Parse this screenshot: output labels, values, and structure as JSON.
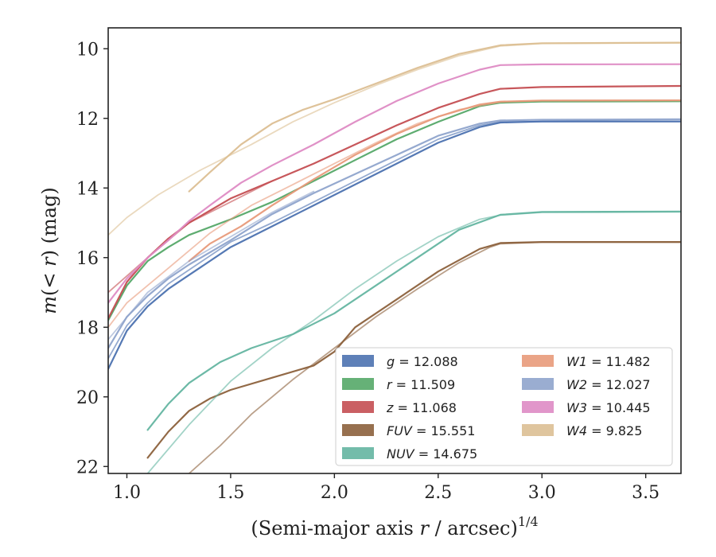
{
  "chart_data": {
    "type": "line",
    "xlabel": "(Semi-major axis r / arcsec)^{1/4}",
    "xlabel_parts": {
      "pre": "(Semi-major axis ",
      "var": "r",
      "post": " / arcsec)",
      "sup": "1/4"
    },
    "ylabel": "m(<r) (mag)",
    "ylabel_parts": {
      "pre": "m",
      "mid": "(< ",
      "var": "r",
      "post": ") (mag)"
    },
    "xlim": [
      0.91,
      3.67
    ],
    "ylim": [
      22.2,
      9.4
    ],
    "y_inverted": true,
    "xticks": [
      1.0,
      1.5,
      2.0,
      2.5,
      3.0,
      3.5
    ],
    "xtick_labels": [
      "1.0",
      "1.5",
      "2.0",
      "2.5",
      "3.0",
      "3.5"
    ],
    "yticks": [
      10,
      12,
      14,
      16,
      18,
      20,
      22
    ],
    "ytick_labels": [
      "10",
      "12",
      "14",
      "16",
      "18",
      "20",
      "22"
    ],
    "grid": false,
    "legend_position": "lower-right",
    "series": [
      {
        "name": "g = 12.088",
        "label_var": "g",
        "label_val": " = 12.088",
        "color": "#4c72b0",
        "curves": [
          [
            [
              0.91,
              19.2
            ],
            [
              1.0,
              18.1
            ],
            [
              1.1,
              17.4
            ],
            [
              1.2,
              16.9
            ],
            [
              1.3,
              16.5
            ],
            [
              1.5,
              15.7
            ],
            [
              1.7,
              15.1
            ],
            [
              1.9,
              14.5
            ],
            [
              2.1,
              13.9
            ],
            [
              2.3,
              13.3
            ],
            [
              2.5,
              12.7
            ],
            [
              2.7,
              12.25
            ],
            [
              2.8,
              12.12
            ],
            [
              3.0,
              12.09
            ],
            [
              3.67,
              12.088
            ]
          ],
          [
            [
              0.91,
              18.9
            ],
            [
              1.0,
              17.95
            ],
            [
              1.1,
              17.3
            ],
            [
              1.2,
              16.75
            ],
            [
              1.3,
              16.35
            ],
            [
              1.5,
              15.55
            ],
            [
              1.7,
              15.0
            ],
            [
              1.9,
              14.4
            ],
            [
              2.1,
              13.8
            ],
            [
              2.3,
              13.2
            ],
            [
              2.5,
              12.6
            ],
            [
              2.7,
              12.2
            ],
            [
              2.8,
              12.1
            ],
            [
              3.2,
              12.09
            ],
            [
              3.67,
              12.09
            ]
          ]
        ]
      },
      {
        "name": "r = 11.509",
        "label_var": "r",
        "label_val": " = 11.509",
        "color": "#55a868",
        "curves": [
          [
            [
              0.91,
              17.8
            ],
            [
              1.0,
              16.8
            ],
            [
              1.1,
              16.1
            ],
            [
              1.2,
              15.7
            ],
            [
              1.3,
              15.35
            ],
            [
              1.5,
              14.9
            ],
            [
              1.7,
              14.4
            ],
            [
              1.9,
              13.8
            ],
            [
              2.1,
              13.2
            ],
            [
              2.3,
              12.6
            ],
            [
              2.5,
              12.1
            ],
            [
              2.7,
              11.65
            ],
            [
              2.8,
              11.55
            ],
            [
              3.0,
              11.52
            ],
            [
              3.67,
              11.509
            ]
          ]
        ]
      },
      {
        "name": "z = 11.068",
        "label_var": "z",
        "label_val": " = 11.068",
        "color": "#c44e52",
        "curves": [
          [
            [
              0.91,
              17.75
            ],
            [
              1.0,
              16.7
            ],
            [
              1.1,
              16.0
            ],
            [
              1.2,
              15.45
            ],
            [
              1.3,
              15.0
            ],
            [
              1.5,
              14.3
            ],
            [
              1.7,
              13.8
            ],
            [
              1.9,
              13.3
            ],
            [
              2.1,
              12.75
            ],
            [
              2.3,
              12.2
            ],
            [
              2.5,
              11.7
            ],
            [
              2.7,
              11.3
            ],
            [
              2.8,
              11.15
            ],
            [
              3.0,
              11.1
            ],
            [
              3.67,
              11.068
            ]
          ],
          [
            [
              0.91,
              17.0
            ],
            [
              1.1,
              16.0
            ],
            [
              1.3,
              15.0
            ],
            [
              1.5,
              14.4
            ],
            [
              1.7,
              13.8
            ]
          ]
        ]
      },
      {
        "name": "FUV = 15.551",
        "label_var": "FUV",
        "label_val": " = 15.551",
        "color": "#8c613c",
        "curves": [
          [
            [
              1.1,
              21.75
            ],
            [
              1.2,
              21.0
            ],
            [
              1.3,
              20.4
            ],
            [
              1.4,
              20.05
            ],
            [
              1.5,
              19.8
            ],
            [
              1.7,
              19.45
            ],
            [
              1.9,
              19.1
            ],
            [
              2.0,
              18.7
            ],
            [
              2.1,
              18.0
            ],
            [
              2.3,
              17.2
            ],
            [
              2.5,
              16.4
            ],
            [
              2.7,
              15.75
            ],
            [
              2.8,
              15.58
            ],
            [
              3.0,
              15.552
            ],
            [
              3.67,
              15.551
            ]
          ],
          [
            [
              1.3,
              22.2
            ],
            [
              1.45,
              21.4
            ],
            [
              1.6,
              20.5
            ],
            [
              1.8,
              19.5
            ],
            [
              2.0,
              18.6
            ],
            [
              2.2,
              17.7
            ],
            [
              2.4,
              16.9
            ],
            [
              2.6,
              16.15
            ],
            [
              2.75,
              15.7
            ],
            [
              2.8,
              15.6
            ],
            [
              3.0,
              15.56
            ],
            [
              3.67,
              15.555
            ]
          ]
        ]
      },
      {
        "name": "NUV = 14.675",
        "label_var": "NUV",
        "label_val": " = 14.675",
        "color": "#64b5a1",
        "curves": [
          [
            [
              1.1,
              20.95
            ],
            [
              1.2,
              20.2
            ],
            [
              1.3,
              19.6
            ],
            [
              1.45,
              19.0
            ],
            [
              1.6,
              18.6
            ],
            [
              1.8,
              18.2
            ],
            [
              2.0,
              17.6
            ],
            [
              2.2,
              16.8
            ],
            [
              2.4,
              16.0
            ],
            [
              2.6,
              15.2
            ],
            [
              2.8,
              14.77
            ],
            [
              3.0,
              14.69
            ],
            [
              3.67,
              14.675
            ]
          ],
          [
            [
              1.1,
              22.2
            ],
            [
              1.3,
              20.8
            ],
            [
              1.5,
              19.55
            ],
            [
              1.7,
              18.6
            ],
            [
              1.9,
              17.8
            ],
            [
              2.1,
              16.9
            ],
            [
              2.3,
              16.1
            ],
            [
              2.5,
              15.4
            ],
            [
              2.7,
              14.9
            ],
            [
              2.8,
              14.78
            ],
            [
              3.0,
              14.7
            ],
            [
              3.67,
              14.69
            ]
          ]
        ]
      },
      {
        "name": "W1 = 11.482",
        "label_var": "W1",
        "label_val": " = 11.482",
        "color": "#e89a7a",
        "curves": [
          [
            [
              1.3,
              16.1
            ],
            [
              1.4,
              15.6
            ],
            [
              1.55,
              15.1
            ],
            [
              1.7,
              14.5
            ],
            [
              1.9,
              13.75
            ],
            [
              2.1,
              13.05
            ],
            [
              2.3,
              12.45
            ],
            [
              2.5,
              11.95
            ],
            [
              2.7,
              11.6
            ],
            [
              2.8,
              11.52
            ],
            [
              3.0,
              11.49
            ],
            [
              3.67,
              11.482
            ]
          ],
          [
            [
              0.91,
              18.0
            ],
            [
              1.0,
              17.3
            ],
            [
              1.2,
              16.3
            ],
            [
              1.4,
              15.3
            ],
            [
              1.6,
              14.5
            ],
            [
              1.8,
              13.9
            ],
            [
              2.0,
              13.3
            ],
            [
              2.2,
              12.7
            ],
            [
              2.4,
              12.15
            ],
            [
              2.6,
              11.75
            ],
            [
              2.8,
              11.53
            ],
            [
              3.0,
              11.49
            ],
            [
              3.67,
              11.48
            ]
          ]
        ]
      },
      {
        "name": "W2 = 12.027",
        "label_var": "W2",
        "label_val": " = 12.027",
        "color": "#8fa4cc",
        "curves": [
          [
            [
              0.91,
              18.6
            ],
            [
              1.0,
              17.7
            ],
            [
              1.1,
              17.1
            ],
            [
              1.2,
              16.6
            ],
            [
              1.3,
              16.2
            ],
            [
              1.5,
              15.5
            ],
            [
              1.7,
              14.75
            ],
            [
              1.9,
              14.15
            ],
            [
              2.1,
              13.6
            ],
            [
              2.3,
              13.05
            ],
            [
              2.5,
              12.5
            ],
            [
              2.7,
              12.15
            ],
            [
              2.8,
              12.06
            ],
            [
              3.0,
              12.04
            ],
            [
              3.67,
              12.027
            ]
          ],
          [
            [
              0.91,
              18.35
            ],
            [
              1.1,
              17.0
            ],
            [
              1.3,
              16.1
            ],
            [
              1.5,
              15.4
            ],
            [
              1.7,
              14.7
            ],
            [
              1.9,
              14.1
            ]
          ]
        ]
      },
      {
        "name": "W3 = 10.445",
        "label_var": "W3",
        "label_val": " = 10.445",
        "color": "#de8bc4",
        "curves": [
          [
            [
              0.91,
              17.3
            ],
            [
              1.0,
              16.6
            ],
            [
              1.1,
              16.0
            ],
            [
              1.2,
              15.5
            ],
            [
              1.3,
              14.95
            ],
            [
              1.4,
              14.5
            ],
            [
              1.55,
              13.85
            ],
            [
              1.7,
              13.35
            ],
            [
              1.9,
              12.75
            ],
            [
              2.1,
              12.1
            ],
            [
              2.3,
              11.5
            ],
            [
              2.5,
              11.0
            ],
            [
              2.7,
              10.6
            ],
            [
              2.8,
              10.47
            ],
            [
              3.0,
              10.45
            ],
            [
              3.67,
              10.445
            ]
          ]
        ]
      },
      {
        "name": "W4 = 9.825",
        "label_var": "W4",
        "label_val": " = 9.825",
        "color": "#dcbf93",
        "curves": [
          [
            [
              1.3,
              14.1
            ],
            [
              1.4,
              13.55
            ],
            [
              1.55,
              12.75
            ],
            [
              1.7,
              12.15
            ],
            [
              1.85,
              11.75
            ],
            [
              2.0,
              11.45
            ],
            [
              2.2,
              11.0
            ],
            [
              2.4,
              10.55
            ],
            [
              2.6,
              10.15
            ],
            [
              2.8,
              9.9
            ],
            [
              3.0,
              9.84
            ],
            [
              3.67,
              9.825
            ]
          ],
          [
            [
              0.91,
              15.35
            ],
            [
              1.0,
              14.85
            ],
            [
              1.15,
              14.2
            ],
            [
              1.35,
              13.5
            ],
            [
              1.6,
              12.75
            ],
            [
              1.8,
              12.1
            ],
            [
              2.0,
              11.55
            ],
            [
              2.2,
              11.05
            ],
            [
              2.4,
              10.6
            ],
            [
              2.6,
              10.2
            ],
            [
              2.8,
              9.92
            ],
            [
              3.0,
              9.85
            ],
            [
              3.67,
              9.83
            ]
          ]
        ]
      }
    ]
  }
}
